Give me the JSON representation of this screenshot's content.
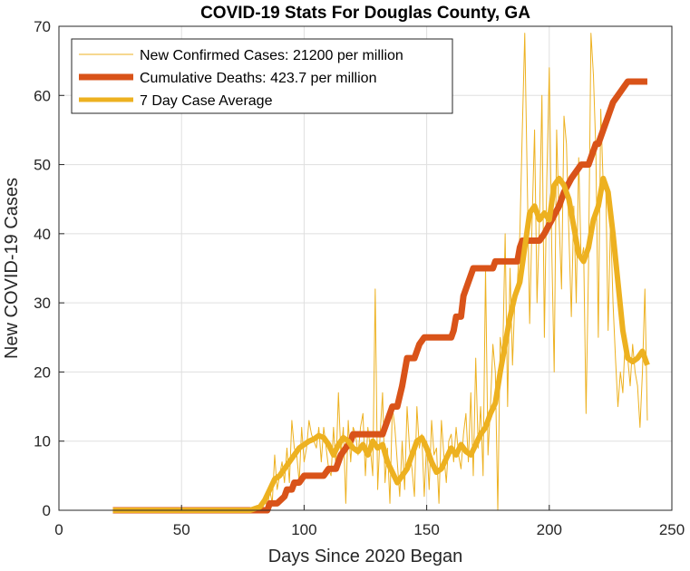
{
  "chart_data": {
    "type": "line",
    "title": "COVID-19 Stats For Douglas County, GA",
    "xlabel": "Days Since 2020 Began",
    "ylabel": "New COVID-19 Cases",
    "xlim": [
      0,
      250
    ],
    "ylim": [
      0,
      70
    ],
    "xticks": [
      "0",
      "50",
      "100",
      "150",
      "200",
      "250"
    ],
    "yticks": [
      "0",
      "10",
      "20",
      "30",
      "40",
      "50",
      "60",
      "70"
    ],
    "grid": true,
    "legend_position": "top-left",
    "series": [
      {
        "name": "New Confirmed Cases: 21200 per million",
        "color": "#EDB120",
        "style": "thin",
        "points": [
          [
            22,
            0
          ],
          [
            30,
            0
          ],
          [
            40,
            0
          ],
          [
            50,
            0
          ],
          [
            60,
            0
          ],
          [
            70,
            0
          ],
          [
            78,
            0
          ],
          [
            80,
            0
          ],
          [
            82,
            1
          ],
          [
            83,
            0
          ],
          [
            84,
            2
          ],
          [
            85,
            0
          ],
          [
            86,
            3
          ],
          [
            87,
            1
          ],
          [
            88,
            8
          ],
          [
            89,
            3
          ],
          [
            90,
            5
          ],
          [
            91,
            7
          ],
          [
            92,
            4
          ],
          [
            93,
            9
          ],
          [
            94,
            4
          ],
          [
            95,
            13
          ],
          [
            96,
            9
          ],
          [
            97,
            8
          ],
          [
            98,
            4
          ],
          [
            99,
            12
          ],
          [
            100,
            7
          ],
          [
            101,
            9
          ],
          [
            102,
            13
          ],
          [
            103,
            11
          ],
          [
            104,
            10
          ],
          [
            105,
            9
          ],
          [
            106,
            12
          ],
          [
            107,
            7
          ],
          [
            108,
            12
          ],
          [
            109,
            9
          ],
          [
            110,
            6
          ],
          [
            111,
            5
          ],
          [
            112,
            12
          ],
          [
            113,
            6
          ],
          [
            114,
            17
          ],
          [
            115,
            8
          ],
          [
            116,
            12
          ],
          [
            117,
            1
          ],
          [
            118,
            13
          ],
          [
            119,
            7
          ],
          [
            120,
            12
          ],
          [
            121,
            11
          ],
          [
            122,
            8
          ],
          [
            123,
            12
          ],
          [
            124,
            14
          ],
          [
            125,
            5
          ],
          [
            126,
            12
          ],
          [
            127,
            9
          ],
          [
            128,
            5
          ],
          [
            129,
            32
          ],
          [
            130,
            3
          ],
          [
            131,
            11
          ],
          [
            132,
            17
          ],
          [
            133,
            4
          ],
          [
            134,
            9
          ],
          [
            135,
            1
          ],
          [
            136,
            15
          ],
          [
            137,
            12
          ],
          [
            138,
            7
          ],
          [
            139,
            2
          ],
          [
            140,
            10
          ],
          [
            141,
            3
          ],
          [
            142,
            15
          ],
          [
            143,
            9
          ],
          [
            144,
            6
          ],
          [
            145,
            2
          ],
          [
            146,
            15
          ],
          [
            147,
            9
          ],
          [
            148,
            11
          ],
          [
            149,
            2
          ],
          [
            150,
            10
          ],
          [
            151,
            3
          ],
          [
            152,
            13
          ],
          [
            153,
            8
          ],
          [
            154,
            9
          ],
          [
            155,
            1
          ],
          [
            156,
            13
          ],
          [
            157,
            8
          ],
          [
            158,
            4
          ],
          [
            159,
            10
          ],
          [
            160,
            11
          ],
          [
            161,
            7
          ],
          [
            162,
            12
          ],
          [
            163,
            8
          ],
          [
            164,
            6
          ],
          [
            165,
            11
          ],
          [
            166,
            14
          ],
          [
            167,
            7
          ],
          [
            168,
            17
          ],
          [
            169,
            5
          ],
          [
            170,
            22
          ],
          [
            171,
            9
          ],
          [
            172,
            15
          ],
          [
            173,
            5
          ],
          [
            174,
            35
          ],
          [
            175,
            8
          ],
          [
            176,
            15
          ],
          [
            177,
            24
          ],
          [
            178,
            20
          ],
          [
            179,
            0
          ],
          [
            180,
            25
          ],
          [
            181,
            22
          ],
          [
            182,
            40
          ],
          [
            183,
            15
          ],
          [
            184,
            35
          ],
          [
            185,
            21
          ],
          [
            186,
            31
          ],
          [
            187,
            33
          ],
          [
            188,
            40
          ],
          [
            189,
            55
          ],
          [
            190,
            69
          ],
          [
            191,
            48
          ],
          [
            192,
            27
          ],
          [
            193,
            42
          ],
          [
            194,
            55
          ],
          [
            195,
            30
          ],
          [
            196,
            42
          ],
          [
            197,
            60
          ],
          [
            198,
            25
          ],
          [
            199,
            48
          ],
          [
            200,
            64
          ],
          [
            201,
            38
          ],
          [
            202,
            20
          ],
          [
            203,
            55
          ],
          [
            204,
            42
          ],
          [
            205,
            32
          ],
          [
            206,
            57
          ],
          [
            207,
            53
          ],
          [
            208,
            40
          ],
          [
            209,
            28
          ],
          [
            210,
            44
          ],
          [
            211,
            30
          ],
          [
            212,
            51
          ],
          [
            213,
            36
          ],
          [
            214,
            38
          ],
          [
            215,
            14
          ],
          [
            216,
            35
          ],
          [
            217,
            69
          ],
          [
            218,
            63
          ],
          [
            219,
            52
          ],
          [
            220,
            25
          ],
          [
            221,
            58
          ],
          [
            222,
            47
          ],
          [
            223,
            48
          ],
          [
            224,
            26
          ],
          [
            225,
            42
          ],
          [
            226,
            30
          ],
          [
            227,
            22
          ],
          [
            228,
            15
          ],
          [
            229,
            20
          ],
          [
            230,
            17
          ],
          [
            231,
            25
          ],
          [
            232,
            22
          ],
          [
            233,
            18
          ],
          [
            234,
            24
          ],
          [
            235,
            20
          ],
          [
            236,
            18
          ],
          [
            237,
            12
          ],
          [
            238,
            20
          ],
          [
            239,
            32
          ],
          [
            240,
            13
          ]
        ]
      },
      {
        "name": "Cumulative Deaths: 423.7 per million",
        "color": "#D95319",
        "style": "thick",
        "points": [
          [
            22,
            0
          ],
          [
            80,
            0
          ],
          [
            85,
            0
          ],
          [
            86,
            1
          ],
          [
            88,
            1
          ],
          [
            89,
            1
          ],
          [
            92,
            2
          ],
          [
            93,
            3
          ],
          [
            95,
            3
          ],
          [
            96,
            4
          ],
          [
            98,
            4
          ],
          [
            100,
            5
          ],
          [
            108,
            5
          ],
          [
            110,
            6
          ],
          [
            113,
            6
          ],
          [
            115,
            8
          ],
          [
            117,
            9
          ],
          [
            119,
            10
          ],
          [
            120,
            11
          ],
          [
            132,
            11
          ],
          [
            134,
            13
          ],
          [
            136,
            15
          ],
          [
            138,
            15
          ],
          [
            140,
            18
          ],
          [
            141,
            20
          ],
          [
            142,
            22
          ],
          [
            145,
            22
          ],
          [
            147,
            24
          ],
          [
            149,
            25
          ],
          [
            160,
            25
          ],
          [
            161,
            26
          ],
          [
            162,
            28
          ],
          [
            164,
            28
          ],
          [
            165,
            31
          ],
          [
            167,
            33
          ],
          [
            169,
            35
          ],
          [
            177,
            35
          ],
          [
            178,
            36
          ],
          [
            187,
            36
          ],
          [
            188,
            38
          ],
          [
            189,
            39
          ],
          [
            196,
            39
          ],
          [
            198,
            40
          ],
          [
            201,
            42
          ],
          [
            204,
            44
          ],
          [
            206,
            46
          ],
          [
            209,
            48
          ],
          [
            211,
            49
          ],
          [
            213,
            50
          ],
          [
            216,
            50
          ],
          [
            217,
            51
          ],
          [
            219,
            53
          ],
          [
            220,
            53
          ],
          [
            222,
            55
          ],
          [
            224,
            57
          ],
          [
            226,
            59
          ],
          [
            228,
            60
          ],
          [
            230,
            61
          ],
          [
            232,
            62
          ],
          [
            240,
            62
          ]
        ]
      },
      {
        "name": "7 Day Case Average",
        "color": "#EDB120",
        "style": "medium",
        "points": [
          [
            22,
            0
          ],
          [
            30,
            0
          ],
          [
            40,
            0
          ],
          [
            50,
            0
          ],
          [
            60,
            0
          ],
          [
            70,
            0
          ],
          [
            78,
            0
          ],
          [
            82,
            0.5
          ],
          [
            84,
            1.5
          ],
          [
            86,
            3
          ],
          [
            88,
            4.5
          ],
          [
            90,
            5
          ],
          [
            92,
            6
          ],
          [
            94,
            7
          ],
          [
            96,
            8
          ],
          [
            98,
            9
          ],
          [
            100,
            9.5
          ],
          [
            102,
            10
          ],
          [
            104,
            10.3
          ],
          [
            106,
            10.8
          ],
          [
            108,
            10.5
          ],
          [
            110,
            9.5
          ],
          [
            112,
            8
          ],
          [
            114,
            9.5
          ],
          [
            116,
            10.5
          ],
          [
            118,
            10
          ],
          [
            120,
            9
          ],
          [
            122,
            8.5
          ],
          [
            124,
            9.5
          ],
          [
            126,
            8
          ],
          [
            128,
            10
          ],
          [
            130,
            9
          ],
          [
            132,
            9.5
          ],
          [
            134,
            7
          ],
          [
            136,
            5.5
          ],
          [
            138,
            4
          ],
          [
            140,
            5
          ],
          [
            142,
            6
          ],
          [
            144,
            8
          ],
          [
            146,
            10
          ],
          [
            148,
            10.5
          ],
          [
            150,
            9
          ],
          [
            152,
            7
          ],
          [
            154,
            5.5
          ],
          [
            156,
            6
          ],
          [
            158,
            7.5
          ],
          [
            160,
            9
          ],
          [
            162,
            8
          ],
          [
            164,
            9.5
          ],
          [
            166,
            8.5
          ],
          [
            168,
            8
          ],
          [
            170,
            9.5
          ],
          [
            172,
            11
          ],
          [
            174,
            12
          ],
          [
            176,
            14
          ],
          [
            178,
            15.5
          ],
          [
            180,
            20
          ],
          [
            182,
            24
          ],
          [
            184,
            28
          ],
          [
            186,
            31
          ],
          [
            188,
            33
          ],
          [
            190,
            38
          ],
          [
            192,
            43
          ],
          [
            194,
            44
          ],
          [
            196,
            42
          ],
          [
            198,
            43
          ],
          [
            200,
            42
          ],
          [
            202,
            47
          ],
          [
            204,
            48
          ],
          [
            206,
            47
          ],
          [
            208,
            45
          ],
          [
            210,
            41
          ],
          [
            212,
            37
          ],
          [
            214,
            36
          ],
          [
            216,
            38
          ],
          [
            218,
            42
          ],
          [
            220,
            44
          ],
          [
            222,
            48
          ],
          [
            224,
            46
          ],
          [
            226,
            40
          ],
          [
            228,
            33
          ],
          [
            230,
            26
          ],
          [
            232,
            22
          ],
          [
            234,
            21.5
          ],
          [
            236,
            22
          ],
          [
            238,
            23
          ],
          [
            240,
            21
          ]
        ]
      }
    ]
  }
}
